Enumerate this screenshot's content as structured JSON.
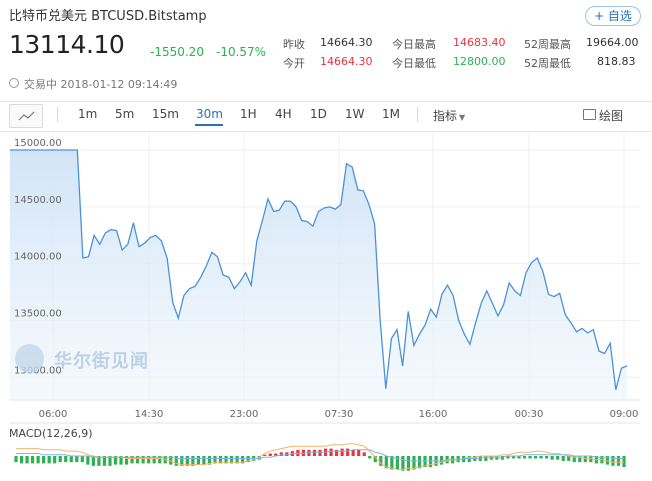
{
  "header": {
    "title": "比特币兑美元  BTCUSD.Bitstamp",
    "add_label": "+ 自选",
    "price": "13114.10",
    "change": "-1550.20",
    "change_pct": "-10.57%",
    "stats": [
      {
        "label": "昨收",
        "value": "14664.30",
        "tone": "neutral"
      },
      {
        "label": "今开",
        "value": "14664.30",
        "tone": "red"
      },
      {
        "label": "今日最高",
        "value": "14683.40",
        "tone": "red"
      },
      {
        "label": "今日最低",
        "value": "12800.00",
        "tone": "green"
      },
      {
        "label": "52周最高",
        "value": "19664.00",
        "tone": "neutral"
      },
      {
        "label": "52周最低",
        "value": "818.83",
        "tone": "neutral"
      }
    ],
    "status": "交易中 2018-01-12 09:14:49"
  },
  "toolbar": {
    "periods": [
      "1m",
      "5m",
      "15m",
      "30m",
      "1H",
      "4H",
      "1D",
      "1W",
      "1M"
    ],
    "active_period": "30m",
    "indicator_label": "指标",
    "draw_label": "绘图"
  },
  "watermark": "华尔街见闻",
  "colors": {
    "line": "#4a93d6",
    "fill_top": "#cfe3f6",
    "up": "#e8353f",
    "down": "#2eb052",
    "accent": "#2b6fc2"
  },
  "chart_data": {
    "type": "area",
    "title": "",
    "xlabel": "",
    "ylabel": "",
    "x_ticks": [
      "06:00",
      "14:30",
      "23:00",
      "07:30",
      "16:00",
      "00:30",
      "09:00"
    ],
    "y_ticks": [
      15000,
      14500,
      14000,
      13500,
      13000
    ],
    "ylim": [
      12800,
      15150
    ],
    "grid": true,
    "series": [
      {
        "values": [
          15000,
          15000,
          15000,
          15000,
          15000,
          15000,
          15000,
          15000,
          15000,
          15000,
          15000,
          15000,
          15000,
          14050,
          14060,
          14250,
          14170,
          14270,
          14300,
          14290,
          14120,
          14170,
          14360,
          14150,
          14180,
          14230,
          14250,
          14200,
          14050,
          13660,
          13520,
          13720,
          13780,
          13800,
          13880,
          13980,
          14100,
          14060,
          13900,
          13880,
          13780,
          13840,
          13920,
          13810,
          14200,
          14380,
          14570,
          14460,
          14470,
          14550,
          14550,
          14500,
          14380,
          14370,
          14330,
          14460,
          14490,
          14500,
          14480,
          14520,
          14880,
          14850,
          14650,
          14640,
          14520,
          14350,
          13500,
          12900,
          13340,
          13420,
          13100,
          13580,
          13280,
          13380,
          13460,
          13600,
          13530,
          13730,
          13810,
          13720,
          13500,
          13380,
          13290,
          13480,
          13650,
          13760,
          13650,
          13540,
          13640,
          13830,
          13760,
          13720,
          13920,
          14010,
          14050,
          13930,
          13730,
          13710,
          13740,
          13550,
          13480,
          13400,
          13430,
          13390,
          13420,
          13230,
          13210,
          13300,
          12890,
          13080,
          13100
        ]
      }
    ]
  },
  "macd": {
    "label": "MACD(12,26,9)",
    "hist": [
      -0.5,
      -0.6,
      -0.6,
      -0.6,
      -0.6,
      -0.6,
      -0.6,
      -0.6,
      -0.5,
      -0.5,
      -0.5,
      -0.5,
      -0.5,
      -0.7,
      -0.8,
      -0.8,
      -0.8,
      -0.8,
      -0.7,
      -0.7,
      -0.7,
      -0.6,
      -0.6,
      -0.6,
      -0.6,
      -0.6,
      -0.6,
      -0.6,
      -0.7,
      -0.8,
      -0.8,
      -0.8,
      -0.8,
      -0.7,
      -0.7,
      -0.7,
      -0.6,
      -0.6,
      -0.6,
      -0.6,
      -0.6,
      -0.6,
      -0.5,
      -0.4,
      -0.3,
      0.1,
      0.2,
      0.2,
      0.3,
      0.3,
      0.4,
      0.5,
      0.5,
      0.5,
      0.5,
      0.5,
      0.6,
      0.6,
      0.5,
      0.6,
      0.6,
      0.5,
      0.5,
      0.3,
      -0.2,
      -0.5,
      -0.8,
      -1.0,
      -1.1,
      -1.1,
      -1.2,
      -1.2,
      -1.1,
      -1.0,
      -0.9,
      -0.9,
      -0.8,
      -0.7,
      -0.6,
      -0.6,
      -0.5,
      -0.5,
      -0.5,
      -0.4,
      -0.4,
      -0.4,
      -0.3,
      -0.3,
      -0.3,
      -0.2,
      -0.2,
      -0.2,
      -0.2,
      -0.2,
      -0.2,
      -0.2,
      -0.2,
      -0.3,
      -0.3,
      -0.4,
      -0.4,
      -0.5,
      -0.5,
      -0.5,
      -0.5,
      -0.6,
      -0.6,
      -0.7,
      -0.8,
      -0.8,
      -0.9
    ],
    "dif": [
      0.6,
      0.6,
      0.6,
      0.6,
      0.6,
      0.5,
      0.5,
      0.5,
      0.5,
      0.4,
      0.4,
      0.4,
      0.3,
      0.1,
      0.0,
      -0.1,
      -0.1,
      -0.1,
      -0.1,
      -0.1,
      -0.2,
      -0.2,
      -0.2,
      -0.2,
      -0.2,
      -0.2,
      -0.2,
      -0.3,
      -0.4,
      -0.6,
      -0.7,
      -0.7,
      -0.7,
      -0.7,
      -0.7,
      -0.6,
      -0.5,
      -0.5,
      -0.5,
      -0.5,
      -0.5,
      -0.5,
      -0.4,
      -0.3,
      -0.1,
      0.2,
      0.4,
      0.5,
      0.6,
      0.7,
      0.8,
      0.8,
      0.8,
      0.8,
      0.8,
      0.8,
      0.8,
      0.9,
      0.9,
      0.9,
      1.0,
      1.0,
      0.9,
      0.8,
      0.4,
      -0.1,
      -0.6,
      -0.9,
      -1.0,
      -1.1,
      -1.1,
      -1.0,
      -1.0,
      -0.9,
      -0.8,
      -0.7,
      -0.6,
      -0.5,
      -0.4,
      -0.3,
      -0.3,
      -0.2,
      -0.1,
      -0.1,
      0.0,
      0.0,
      0.0,
      0.0,
      0.1,
      0.1,
      0.2,
      0.3,
      0.3,
      0.3,
      0.4,
      0.4,
      0.3,
      0.2,
      0.2,
      0.1,
      0.0,
      -0.1,
      -0.1,
      -0.2,
      -0.2,
      -0.3,
      -0.3,
      -0.4,
      -0.5,
      -0.5,
      -0.5
    ],
    "dea": [
      0.2,
      0.2,
      0.2,
      0.2,
      0.2,
      0.1,
      0.1,
      0.1,
      0.1,
      0.1,
      0.0,
      0.0,
      0.0,
      0.0,
      -0.1,
      -0.1,
      -0.1,
      -0.1,
      -0.1,
      -0.1,
      -0.1,
      -0.1,
      -0.1,
      -0.1,
      -0.1,
      -0.1,
      -0.1,
      -0.1,
      -0.1,
      -0.2,
      -0.2,
      -0.2,
      -0.2,
      -0.2,
      -0.2,
      -0.2,
      -0.2,
      -0.2,
      -0.2,
      -0.2,
      -0.2,
      -0.2,
      -0.2,
      -0.2,
      -0.2,
      -0.1,
      -0.1,
      0.0,
      0.1,
      0.1,
      0.2,
      0.2,
      0.2,
      0.3,
      0.3,
      0.3,
      0.3,
      0.4,
      0.4,
      0.4,
      0.4,
      0.5,
      0.5,
      0.5,
      0.5,
      0.3,
      0.2,
      0.0,
      -0.1,
      -0.2,
      -0.3,
      -0.4,
      -0.4,
      -0.4,
      -0.4,
      -0.4,
      -0.4,
      -0.4,
      -0.3,
      -0.3,
      -0.3,
      -0.2,
      -0.2,
      -0.2,
      -0.2,
      -0.1,
      -0.1,
      -0.1,
      -0.1,
      0.0,
      0.0,
      0.0,
      0.1,
      0.1,
      0.1,
      0.1,
      0.1,
      0.1,
      0.1,
      0.1,
      0.1,
      0.0,
      0.0,
      0.0,
      0.0,
      -0.1,
      -0.1,
      -0.1,
      -0.2,
      -0.2,
      -0.2
    ]
  }
}
